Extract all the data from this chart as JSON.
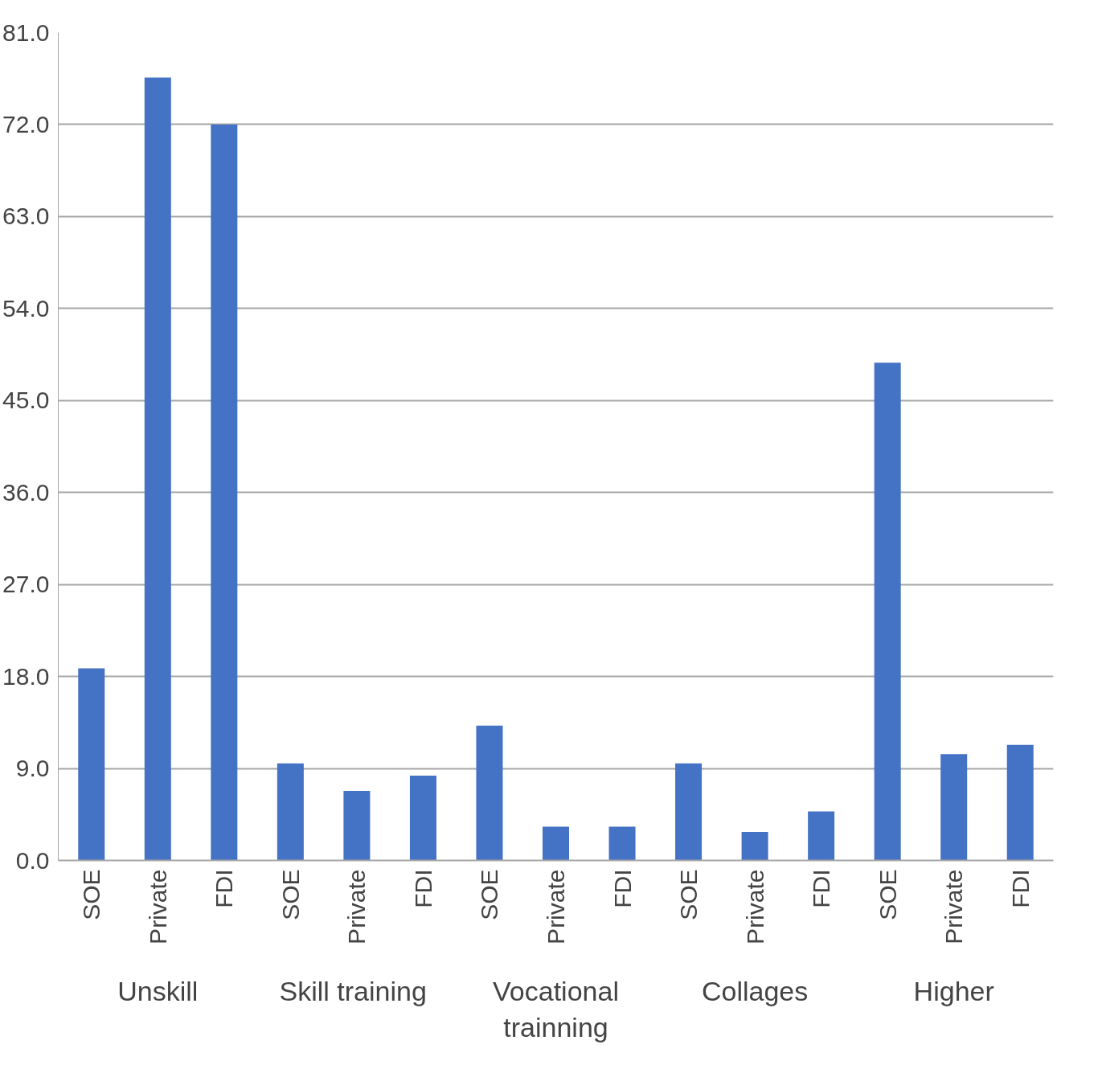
{
  "chart_data": {
    "type": "bar",
    "categories": [
      "SOE",
      "Private",
      "FDI",
      "SOE",
      "Private",
      "FDI",
      "SOE",
      "Private",
      "FDI",
      "SOE",
      "Private",
      "FDI",
      "SOE",
      "Private",
      "FDI"
    ],
    "values": [
      18.8,
      76.6,
      72.0,
      9.5,
      6.8,
      8.3,
      13.2,
      3.3,
      3.3,
      9.5,
      2.8,
      4.8,
      48.7,
      10.4,
      11.3
    ],
    "color": "#4472c4",
    "annotations": [
      "Unskill",
      "Skill  training",
      "Vocational trainning",
      "Collages",
      "Higher"
    ],
    "ylim": [
      0,
      81
    ],
    "yticks": [
      {
        "value": 0,
        "label": "0.0"
      },
      {
        "value": 9,
        "label": "9.0"
      },
      {
        "value": 18,
        "label": "18.0"
      },
      {
        "value": 27,
        "label": "27.0"
      },
      {
        "value": 36,
        "label": "36.0"
      },
      {
        "value": 45,
        "label": "45.0"
      },
      {
        "value": 54,
        "label": "54.0"
      },
      {
        "value": 63,
        "label": "63.0"
      },
      {
        "value": 72,
        "label": "72.0"
      },
      {
        "value": 81,
        "label": "81.0"
      }
    ],
    "grid": "y"
  }
}
